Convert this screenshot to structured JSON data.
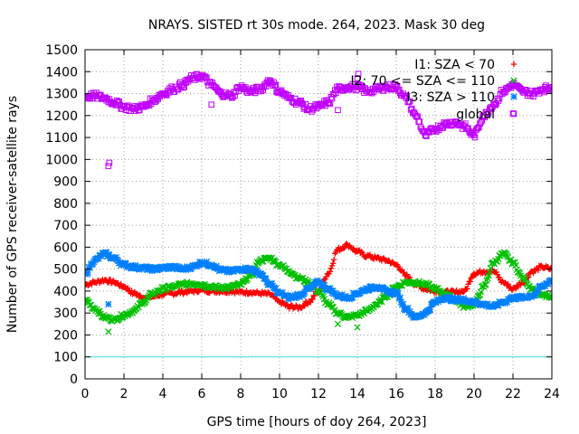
{
  "chart_data": {
    "type": "scatter",
    "title": "NRAYS. SISTED rt 30s mode. 264, 2023. Mask 30 deg",
    "xlabel": "GPS time [hours of doy 264, 2023]",
    "ylabel": "Number of GPS receiver-satellite rays",
    "xlim": [
      0,
      24
    ],
    "ylim": [
      0,
      1500
    ],
    "xticks": [
      0,
      2,
      4,
      6,
      8,
      10,
      12,
      14,
      16,
      18,
      20,
      22,
      24
    ],
    "yticks": [
      0,
      100,
      200,
      300,
      400,
      500,
      600,
      700,
      800,
      900,
      1000,
      1100,
      1200,
      1300,
      1400,
      1500
    ],
    "grid": true,
    "legend_position": "top-right",
    "threshold_line": {
      "value": 100,
      "color": "#40e0e0"
    },
    "series": [
      {
        "name": "I1: SZA < 70",
        "legend_label": "I1: SZA < 70",
        "marker": "+",
        "color": "#ff0000",
        "x": [
          0.0,
          0.5,
          1.0,
          1.5,
          2.0,
          2.5,
          3.0,
          3.5,
          4.0,
          4.5,
          5.0,
          5.5,
          6.0,
          6.5,
          7.0,
          7.5,
          8.0,
          8.5,
          9.0,
          9.5,
          10.0,
          10.5,
          11.0,
          11.5,
          12.0,
          12.5,
          13.0,
          13.5,
          14.0,
          14.5,
          15.0,
          15.5,
          16.0,
          16.5,
          17.0,
          17.5,
          18.0,
          18.5,
          19.0,
          19.5,
          20.0,
          20.5,
          21.0,
          21.5,
          22.0,
          22.5,
          23.0,
          23.5,
          24.0
        ],
        "y": [
          430,
          440,
          450,
          440,
          420,
          390,
          370,
          375,
          385,
          390,
          395,
          400,
          405,
          400,
          400,
          400,
          395,
          395,
          390,
          385,
          350,
          330,
          325,
          350,
          400,
          480,
          590,
          610,
          580,
          560,
          550,
          540,
          520,
          470,
          430,
          410,
          400,
          395,
          395,
          400,
          480,
          490,
          490,
          440,
          410,
          440,
          490,
          510,
          500
        ]
      },
      {
        "name": "I2: 70 <= SZA <= 110",
        "legend_label": "I2: 70 <= SZA <= 110",
        "marker": "x",
        "color": "#00c000",
        "x": [
          0.0,
          0.5,
          1.0,
          1.5,
          2.0,
          2.5,
          3.0,
          3.5,
          4.0,
          4.5,
          5.0,
          5.5,
          6.0,
          6.5,
          7.0,
          7.5,
          8.0,
          8.5,
          9.0,
          9.5,
          10.0,
          10.5,
          11.0,
          11.5,
          12.0,
          12.5,
          13.0,
          13.5,
          14.0,
          14.5,
          15.0,
          15.5,
          16.0,
          16.5,
          17.0,
          17.5,
          18.0,
          18.5,
          19.0,
          19.5,
          20.0,
          20.5,
          21.0,
          21.5,
          22.0,
          22.5,
          23.0,
          23.5,
          24.0
        ],
        "y": [
          360,
          320,
          280,
          270,
          290,
          310,
          350,
          390,
          410,
          420,
          430,
          435,
          430,
          420,
          415,
          420,
          430,
          470,
          540,
          550,
          520,
          490,
          460,
          440,
          400,
          340,
          300,
          280,
          290,
          310,
          340,
          380,
          420,
          440,
          440,
          430,
          410,
          390,
          360,
          330,
          340,
          420,
          530,
          570,
          530,
          460,
          410,
          380,
          370
        ]
      },
      {
        "name": "I3: SZA > 110",
        "legend_label": "I3: SZA > 110",
        "marker": "*",
        "color": "#0080ff",
        "x": [
          0.0,
          0.5,
          1.0,
          1.5,
          2.0,
          2.5,
          3.0,
          3.5,
          4.0,
          4.5,
          5.0,
          5.5,
          6.0,
          6.5,
          7.0,
          7.5,
          8.0,
          8.5,
          9.0,
          9.5,
          10.0,
          10.5,
          11.0,
          11.5,
          12.0,
          12.5,
          13.0,
          13.5,
          14.0,
          14.5,
          15.0,
          15.5,
          16.0,
          16.5,
          17.0,
          17.5,
          18.0,
          18.5,
          19.0,
          19.5,
          20.0,
          20.5,
          21.0,
          21.5,
          22.0,
          22.5,
          23.0,
          23.5,
          24.0
        ],
        "y": [
          480,
          540,
          570,
          550,
          520,
          510,
          505,
          500,
          505,
          510,
          500,
          510,
          530,
          520,
          495,
          490,
          500,
          500,
          480,
          430,
          390,
          370,
          380,
          410,
          440,
          410,
          380,
          370,
          390,
          410,
          420,
          400,
          390,
          320,
          280,
          300,
          350,
          370,
          360,
          360,
          350,
          340,
          330,
          350,
          370,
          370,
          380,
          420,
          450
        ]
      },
      {
        "name": "global",
        "legend_label": "global",
        "marker": "square",
        "color": "#c000ff",
        "x": [
          0.0,
          0.5,
          1.0,
          1.5,
          2.0,
          2.5,
          3.0,
          3.5,
          4.0,
          4.5,
          5.0,
          5.5,
          6.0,
          6.5,
          7.0,
          7.5,
          8.0,
          8.5,
          9.0,
          9.5,
          10.0,
          10.5,
          11.0,
          11.5,
          12.0,
          12.5,
          13.0,
          13.5,
          14.0,
          14.5,
          15.0,
          15.5,
          16.0,
          16.5,
          17.0,
          17.5,
          18.0,
          18.5,
          19.0,
          19.5,
          20.0,
          20.5,
          21.0,
          21.5,
          22.0,
          22.5,
          23.0,
          23.5,
          24.0
        ],
        "y": [
          1285,
          1290,
          1280,
          1260,
          1240,
          1230,
          1240,
          1270,
          1300,
          1320,
          1340,
          1370,
          1380,
          1340,
          1300,
          1290,
          1330,
          1310,
          1320,
          1360,
          1310,
          1280,
          1260,
          1230,
          1240,
          1260,
          1320,
          1330,
          1330,
          1310,
          1320,
          1330,
          1330,
          1280,
          1200,
          1110,
          1140,
          1160,
          1170,
          1150,
          1110,
          1200,
          1250,
          1310,
          1340,
          1310,
          1300,
          1320,
          1330
        ]
      }
    ],
    "outliers": [
      {
        "series": "global",
        "x": [
          1.2,
          1.25,
          14.0,
          14.05,
          13.0,
          22.0,
          6.5,
          4.0
        ],
        "y": [
          970,
          985,
          1370,
          1390,
          1225,
          1210,
          1250,
          1300
        ]
      },
      {
        "series": "I2: 70 <= SZA <= 110",
        "x": [
          1.2,
          13.0,
          14.0
        ],
        "y": [
          215,
          250,
          235
        ]
      },
      {
        "series": "I3: SZA > 110",
        "x": [
          1.2
        ],
        "y": [
          340
        ]
      },
      {
        "series": "I1: SZA < 70",
        "x": [
          10.5
        ],
        "y": [
          320
        ]
      }
    ]
  }
}
